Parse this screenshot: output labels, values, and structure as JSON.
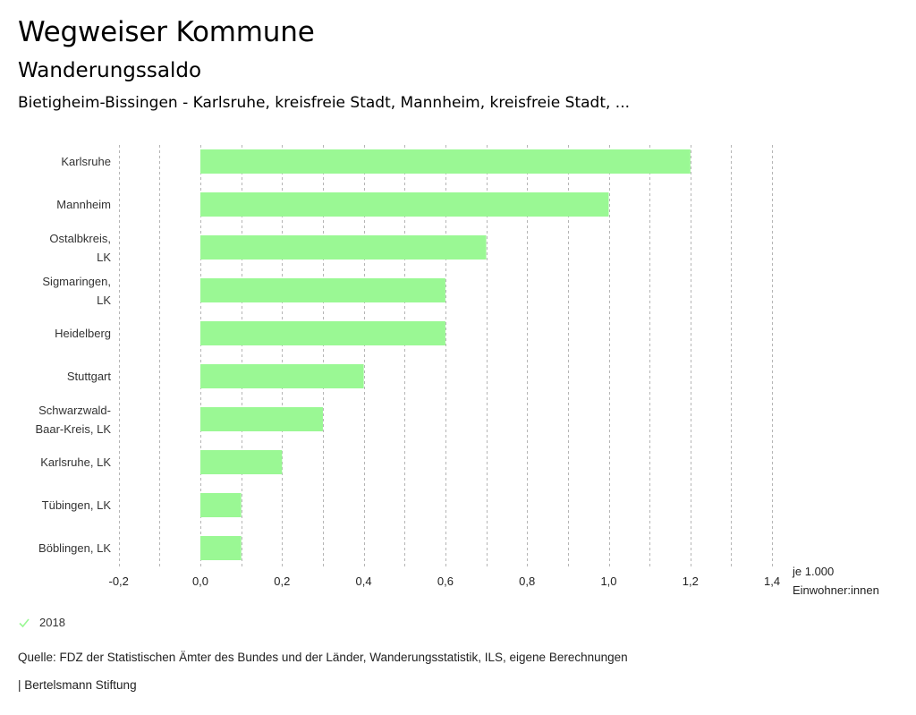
{
  "header": {
    "title": "Wegweiser Kommune",
    "subtitle": "Wanderungssaldo",
    "filter": "Bietigheim-Bissingen - Karlsruhe, kreisfreie Stadt, Mannheim, kreisfreie Stadt, ..."
  },
  "chart_data": {
    "type": "bar",
    "orientation": "horizontal",
    "title": "Wanderungssaldo",
    "categories": [
      [
        "Karlsruhe"
      ],
      [
        "Mannheim"
      ],
      [
        "Ostalbkreis,",
        "LK"
      ],
      [
        "Sigmaringen,",
        "LK"
      ],
      [
        "Heidelberg"
      ],
      [
        "Stuttgart"
      ],
      [
        "Schwarzwald-",
        "Baar-Kreis, LK"
      ],
      [
        "Karlsruhe, LK"
      ],
      [
        "Tübingen, LK"
      ],
      [
        "Böblingen, LK"
      ]
    ],
    "series": [
      {
        "name": "2018",
        "color": "#9af894",
        "values": [
          1.2,
          1.0,
          0.7,
          0.6,
          0.6,
          0.4,
          0.3,
          0.2,
          0.1,
          0.1
        ]
      }
    ],
    "xlim": [
      -0.2,
      1.4
    ],
    "xticks": [
      -0.2,
      0.0,
      0.2,
      0.4,
      0.6,
      0.8,
      1.0,
      1.2,
      1.4
    ],
    "xtick_labels": [
      "-0,2",
      "0,0",
      "0,2",
      "0,4",
      "0,6",
      "0,8",
      "1,0",
      "1,2",
      "1,4"
    ],
    "grid_step": 0.1,
    "grid": true,
    "xlabel": [
      "je 1.000",
      "Einwohner:innen"
    ],
    "ylabel": "",
    "legend_position": "bottom-left"
  },
  "legend": {
    "items": [
      {
        "label": "2018",
        "icon": "check-icon",
        "color": "#9af894"
      }
    ]
  },
  "footer": {
    "source": "Quelle: FDZ der Statistischen Ämter des Bundes und der Länder, Wanderungsstatistik, ILS, eigene Berechnungen",
    "credit": "| Bertelsmann Stiftung"
  }
}
